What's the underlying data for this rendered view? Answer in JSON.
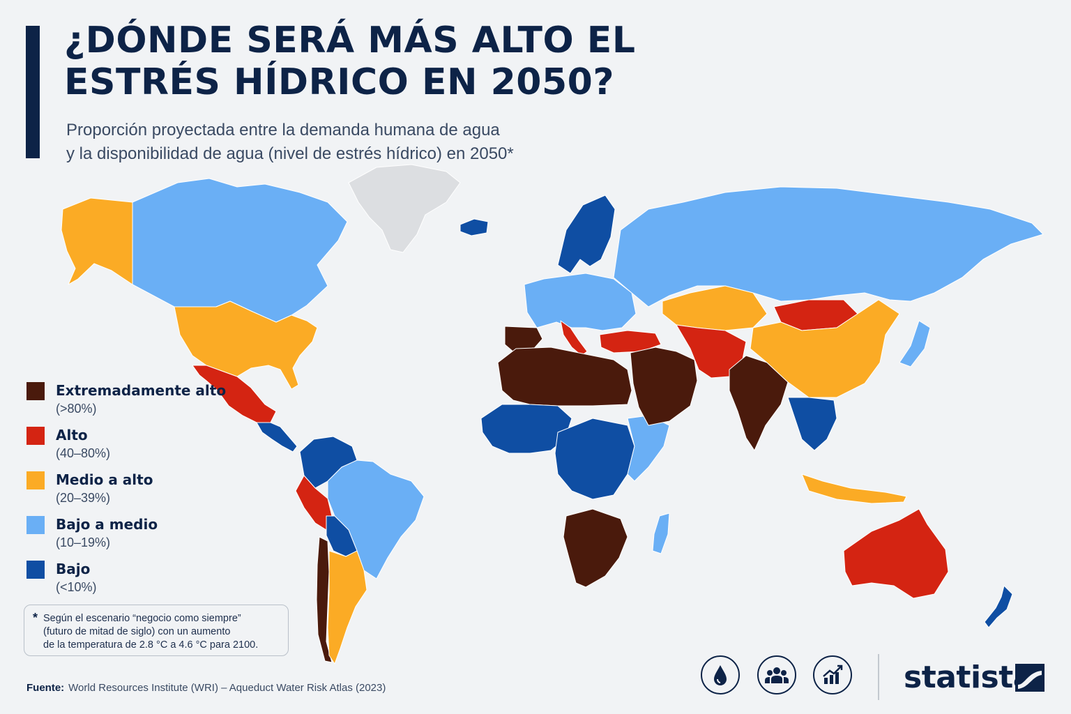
{
  "header": {
    "title": "¿DÓNDE SERÁ MÁS ALTO EL ESTRÉS HÍDRICO EN 2050?",
    "subtitle_line1": "Proporción proyectada entre la demanda humana de agua",
    "subtitle_line2": "y la disponibilidad de agua (nivel de estrés hídrico) en 2050*"
  },
  "legend": {
    "items": [
      {
        "label": "Extremadamente alto",
        "range": "(>80%)",
        "color": "#4a1a0c"
      },
      {
        "label": "Alto",
        "range": "(40–80%)",
        "color": "#d42412"
      },
      {
        "label": "Medio a alto",
        "range": "(20–39%)",
        "color": "#fbab25"
      },
      {
        "label": "Bajo a medio",
        "range": "(10–19%)",
        "color": "#6aaff5"
      },
      {
        "label": "Bajo",
        "range": "(<10%)",
        "color": "#0f4ea3"
      }
    ]
  },
  "footnote": {
    "star": "*",
    "line1": "Según el escenario “negocio como siempre”",
    "line2": "(futuro de mitad de siglo) con un aumento",
    "line3": "de la temperatura de 2.8 °C a 4.6 °C para 2100."
  },
  "source": {
    "label": "Fuente:",
    "text": "World Resources Institute (WRI) – Aqueduct Water Risk Atlas (2023)"
  },
  "icons": [
    "water-drop-icon",
    "people-group-icon",
    "growth-chart-icon"
  ],
  "brand": {
    "name": "statista"
  },
  "map": {
    "no_data_color": "#dcdee1",
    "regions": [
      {
        "name": "greenland",
        "level": "none"
      },
      {
        "name": "canada",
        "level": "bajo_medio"
      },
      {
        "name": "alaska",
        "level": "medio_alto"
      },
      {
        "name": "usa",
        "level": "medio_alto"
      },
      {
        "name": "mexico",
        "level": "alto"
      },
      {
        "name": "central-america",
        "level": "bajo"
      },
      {
        "name": "colombia-venezuela",
        "level": "bajo"
      },
      {
        "name": "brazil",
        "level": "bajo_medio"
      },
      {
        "name": "peru",
        "level": "alto"
      },
      {
        "name": "bolivia",
        "level": "bajo"
      },
      {
        "name": "chile",
        "level": "extremo"
      },
      {
        "name": "argentina",
        "level": "medio_alto"
      },
      {
        "name": "iceland",
        "level": "bajo"
      },
      {
        "name": "scandinavia",
        "level": "bajo"
      },
      {
        "name": "western-europe",
        "level": "bajo_medio"
      },
      {
        "name": "iberia",
        "level": "extremo"
      },
      {
        "name": "italy",
        "level": "alto"
      },
      {
        "name": "russia",
        "level": "bajo_medio"
      },
      {
        "name": "north-africa",
        "level": "extremo"
      },
      {
        "name": "west-africa",
        "level": "bajo"
      },
      {
        "name": "central-africa",
        "level": "bajo"
      },
      {
        "name": "east-africa",
        "level": "bajo_medio"
      },
      {
        "name": "southern-africa",
        "level": "extremo"
      },
      {
        "name": "madagascar",
        "level": "bajo_medio"
      },
      {
        "name": "middle-east",
        "level": "extremo"
      },
      {
        "name": "turkey",
        "level": "alto"
      },
      {
        "name": "central-asia",
        "level": "medio_alto"
      },
      {
        "name": "iran-afghanistan",
        "level": "alto"
      },
      {
        "name": "india",
        "level": "extremo"
      },
      {
        "name": "china",
        "level": "medio_alto"
      },
      {
        "name": "mongolia",
        "level": "alto"
      },
      {
        "name": "southeast-asia",
        "level": "bajo"
      },
      {
        "name": "indonesia",
        "level": "medio_alto"
      },
      {
        "name": "japan",
        "level": "bajo_medio"
      },
      {
        "name": "australia",
        "level": "alto"
      },
      {
        "name": "new-zealand",
        "level": "bajo"
      }
    ]
  }
}
